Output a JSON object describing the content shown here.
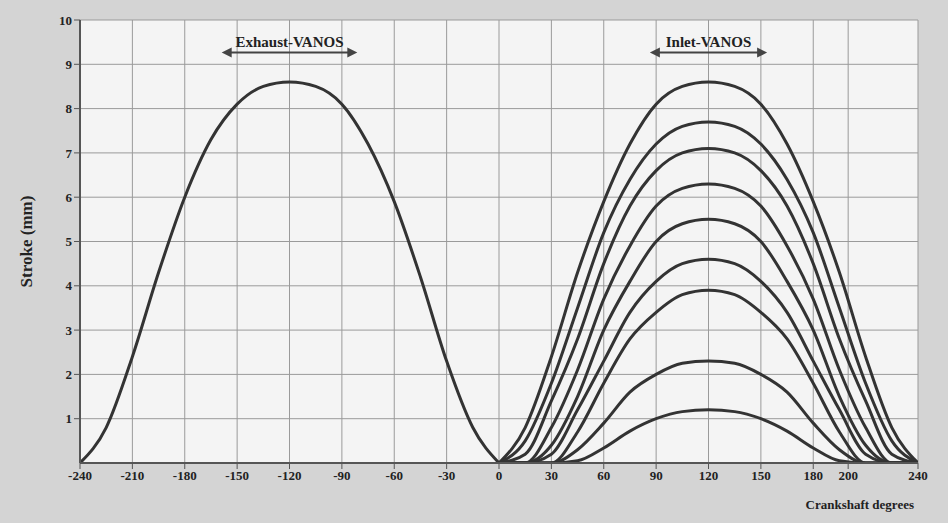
{
  "chart_data": {
    "type": "line",
    "xlabel": "Crankshaft degrees",
    "ylabel": "Stroke (mm)",
    "xlim": [
      -240,
      240
    ],
    "ylim": [
      0,
      10
    ],
    "xticks": [
      -240,
      -210,
      -180,
      -150,
      -120,
      -90,
      -60,
      -30,
      0,
      30,
      60,
      90,
      120,
      150,
      180,
      200,
      240
    ],
    "yticks": [
      1,
      2,
      3,
      4,
      5,
      6,
      7,
      8,
      9,
      10
    ],
    "grid": true,
    "annotations": [
      {
        "text": "Exhaust-VANOS",
        "x": -120,
        "y": 9.4
      },
      {
        "text": "Inlet-VANOS",
        "x": 120,
        "y": 9.4
      }
    ],
    "series": [
      {
        "color": "#333333",
        "x": [
          -240,
          -225,
          -210,
          -195,
          -180,
          -165,
          -150,
          -135,
          -120,
          -105,
          -90,
          -75,
          -60,
          -45,
          -30,
          -15,
          0
        ],
        "values": [
          0,
          0.8,
          2.4,
          4.3,
          6.0,
          7.3,
          8.1,
          8.5,
          8.6,
          8.5,
          8.1,
          7.2,
          5.9,
          4.2,
          2.3,
          0.8,
          0
        ]
      },
      {
        "color": "#333333",
        "x": [
          0,
          15,
          30,
          45,
          60,
          75,
          90,
          105,
          120,
          135,
          150,
          165,
          180,
          195,
          210,
          225,
          240
        ],
        "values": [
          0,
          0.8,
          2.4,
          4.3,
          5.9,
          7.2,
          8.1,
          8.5,
          8.6,
          8.5,
          8.1,
          7.2,
          5.9,
          4.3,
          2.4,
          0.8,
          0
        ]
      },
      {
        "color": "#333333",
        "x": [
          0,
          15,
          30,
          45,
          60,
          75,
          90,
          105,
          120,
          135,
          150,
          165,
          180,
          195,
          210,
          225,
          240
        ],
        "values": [
          0,
          0.5,
          1.8,
          3.5,
          5.2,
          6.4,
          7.2,
          7.6,
          7.7,
          7.6,
          7.2,
          6.4,
          5.2,
          3.5,
          1.8,
          0.5,
          0
        ]
      },
      {
        "color": "#333333",
        "x": [
          0,
          15,
          30,
          45,
          60,
          75,
          90,
          105,
          120,
          135,
          150,
          165,
          180,
          195,
          210,
          225,
          240
        ],
        "values": [
          0,
          0.2,
          1.4,
          2.8,
          4.5,
          5.8,
          6.6,
          7.0,
          7.1,
          7.0,
          6.6,
          5.8,
          4.5,
          2.8,
          1.4,
          0.2,
          0
        ]
      },
      {
        "color": "#333333",
        "x": [
          0,
          15,
          30,
          45,
          60,
          75,
          90,
          105,
          120,
          135,
          150,
          165,
          180,
          195,
          210,
          225,
          240
        ],
        "values": [
          0,
          0,
          0.8,
          2.1,
          3.7,
          4.9,
          5.8,
          6.2,
          6.3,
          6.2,
          5.8,
          4.9,
          3.7,
          2.1,
          0.8,
          0,
          0
        ]
      },
      {
        "color": "#333333",
        "x": [
          0,
          15,
          30,
          45,
          60,
          75,
          90,
          105,
          120,
          135,
          150,
          165,
          180,
          195,
          210,
          225,
          240
        ],
        "values": [
          0,
          0,
          0.4,
          1.5,
          3.0,
          4.1,
          5.0,
          5.4,
          5.5,
          5.4,
          5.0,
          4.1,
          3.0,
          1.5,
          0.4,
          0,
          0
        ]
      },
      {
        "color": "#333333",
        "x": [
          0,
          15,
          30,
          45,
          60,
          75,
          90,
          105,
          120,
          135,
          150,
          165,
          180,
          195,
          210,
          225,
          240
        ],
        "values": [
          0,
          0,
          0.2,
          1.2,
          2.3,
          3.4,
          4.1,
          4.5,
          4.6,
          4.5,
          4.1,
          3.4,
          2.3,
          1.2,
          0.2,
          0,
          0
        ]
      },
      {
        "color": "#333333",
        "x": [
          0,
          15,
          30,
          45,
          60,
          75,
          90,
          105,
          120,
          135,
          150,
          165,
          180,
          195,
          210,
          225,
          240
        ],
        "values": [
          0,
          0,
          0,
          0.7,
          1.8,
          2.8,
          3.4,
          3.8,
          3.9,
          3.8,
          3.4,
          2.8,
          1.8,
          0.7,
          0,
          0,
          0
        ]
      },
      {
        "color": "#333333",
        "x": [
          0,
          15,
          30,
          45,
          60,
          75,
          90,
          105,
          120,
          135,
          150,
          165,
          180,
          195,
          210,
          225,
          240
        ],
        "values": [
          0,
          0,
          0,
          0.3,
          0.9,
          1.6,
          2.0,
          2.25,
          2.3,
          2.25,
          2.0,
          1.6,
          0.9,
          0.3,
          0,
          0,
          0
        ]
      },
      {
        "color": "#333333",
        "x": [
          0,
          15,
          30,
          45,
          60,
          75,
          90,
          105,
          120,
          135,
          150,
          165,
          180,
          195,
          210,
          225,
          240
        ],
        "values": [
          0,
          0,
          0,
          0.05,
          0.34,
          0.72,
          1.0,
          1.16,
          1.2,
          1.16,
          1.0,
          0.72,
          0.34,
          0.05,
          0,
          0,
          0
        ]
      }
    ]
  }
}
